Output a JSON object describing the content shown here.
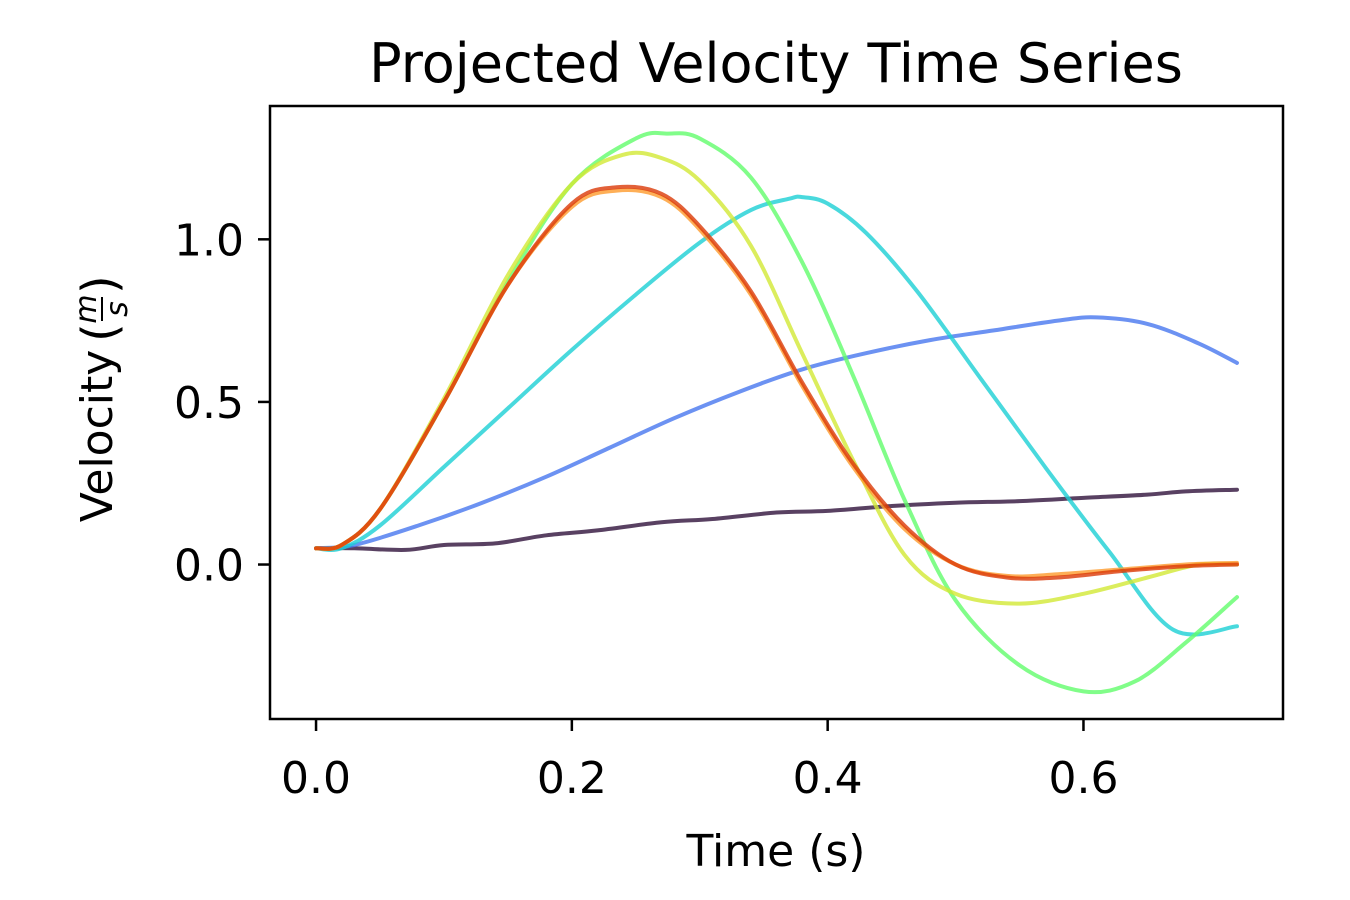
{
  "chart_data": {
    "type": "line",
    "title": "Projected Velocity Time Series",
    "xlabel": "Time (s)",
    "ylabel": "Velocity",
    "ylabel_unit_num": "m",
    "ylabel_unit_den": "s",
    "xlim": [
      -0.036,
      0.756
    ],
    "ylim": [
      -0.475,
      1.41
    ],
    "xticks": [
      0.0,
      0.2,
      0.4,
      0.6
    ],
    "xtick_labels": [
      "0.0",
      "0.2",
      "0.4",
      "0.6"
    ],
    "yticks": [
      0.0,
      0.5,
      1.0
    ],
    "ytick_labels": [
      "0.0",
      "0.5",
      "1.0"
    ],
    "grid": false,
    "series": [
      {
        "name": "series-1",
        "color": "#30123b",
        "x": [
          0.0,
          0.03,
          0.07,
          0.1,
          0.14,
          0.18,
          0.22,
          0.27,
          0.31,
          0.36,
          0.4,
          0.45,
          0.5,
          0.55,
          0.6,
          0.65,
          0.68,
          0.72
        ],
        "y": [
          0.05,
          0.05,
          0.045,
          0.06,
          0.065,
          0.09,
          0.105,
          0.13,
          0.14,
          0.16,
          0.165,
          0.18,
          0.19,
          0.195,
          0.205,
          0.215,
          0.225,
          0.23
        ]
      },
      {
        "name": "series-2",
        "color": "#4777ef",
        "x": [
          0.0,
          0.03,
          0.08,
          0.13,
          0.18,
          0.23,
          0.28,
          0.33,
          0.38,
          0.43,
          0.48,
          0.53,
          0.58,
          0.61,
          0.65,
          0.69,
          0.72
        ],
        "y": [
          0.05,
          0.06,
          0.12,
          0.19,
          0.27,
          0.36,
          0.45,
          0.53,
          0.6,
          0.65,
          0.69,
          0.72,
          0.75,
          0.76,
          0.74,
          0.68,
          0.62
        ]
      },
      {
        "name": "series-3",
        "color": "#1bd0d5",
        "x": [
          0.0,
          0.02,
          0.05,
          0.1,
          0.15,
          0.2,
          0.25,
          0.3,
          0.34,
          0.37,
          0.38,
          0.4,
          0.43,
          0.47,
          0.52,
          0.57,
          0.62,
          0.67,
          0.72
        ],
        "y": [
          0.05,
          0.05,
          0.12,
          0.3,
          0.48,
          0.66,
          0.83,
          0.99,
          1.09,
          1.125,
          1.13,
          1.11,
          1.02,
          0.84,
          0.57,
          0.3,
          0.04,
          -0.2,
          -0.19
        ]
      },
      {
        "name": "series-4",
        "color": "#62fc6b",
        "x": [
          0.0,
          0.02,
          0.05,
          0.1,
          0.15,
          0.2,
          0.25,
          0.275,
          0.3,
          0.34,
          0.38,
          0.42,
          0.46,
          0.5,
          0.55,
          0.6,
          0.64,
          0.68,
          0.72
        ],
        "y": [
          0.05,
          0.06,
          0.17,
          0.5,
          0.87,
          1.17,
          1.31,
          1.325,
          1.31,
          1.19,
          0.93,
          0.58,
          0.2,
          -0.11,
          -0.31,
          -0.39,
          -0.36,
          -0.24,
          -0.1
        ]
      },
      {
        "name": "series-5",
        "color": "#d2e935",
        "x": [
          0.0,
          0.02,
          0.05,
          0.1,
          0.15,
          0.2,
          0.24,
          0.27,
          0.3,
          0.34,
          0.38,
          0.42,
          0.46,
          0.5,
          0.55,
          0.6,
          0.65,
          0.69,
          0.72
        ],
        "y": [
          0.05,
          0.06,
          0.17,
          0.51,
          0.89,
          1.17,
          1.26,
          1.25,
          1.18,
          0.98,
          0.65,
          0.32,
          0.03,
          -0.09,
          -0.12,
          -0.09,
          -0.04,
          0.0,
          0.0
        ]
      },
      {
        "name": "series-6",
        "color": "#fe9b2d",
        "x": [
          0.0,
          0.02,
          0.05,
          0.1,
          0.15,
          0.2,
          0.235,
          0.27,
          0.3,
          0.34,
          0.38,
          0.42,
          0.46,
          0.5,
          0.54,
          0.58,
          0.63,
          0.68,
          0.72
        ],
        "y": [
          0.05,
          0.06,
          0.17,
          0.5,
          0.86,
          1.1,
          1.15,
          1.13,
          1.03,
          0.83,
          0.55,
          0.3,
          0.11,
          0.0,
          -0.035,
          -0.03,
          -0.015,
          0.0,
          0.005
        ]
      },
      {
        "name": "series-7",
        "color": "#db3a07",
        "x": [
          0.0,
          0.02,
          0.05,
          0.1,
          0.15,
          0.2,
          0.235,
          0.27,
          0.3,
          0.34,
          0.38,
          0.42,
          0.46,
          0.5,
          0.54,
          0.58,
          0.63,
          0.68,
          0.72
        ],
        "y": [
          0.05,
          0.06,
          0.17,
          0.5,
          0.86,
          1.11,
          1.16,
          1.14,
          1.04,
          0.84,
          0.56,
          0.31,
          0.12,
          0.0,
          -0.04,
          -0.04,
          -0.02,
          -0.005,
          0.0
        ]
      }
    ]
  }
}
